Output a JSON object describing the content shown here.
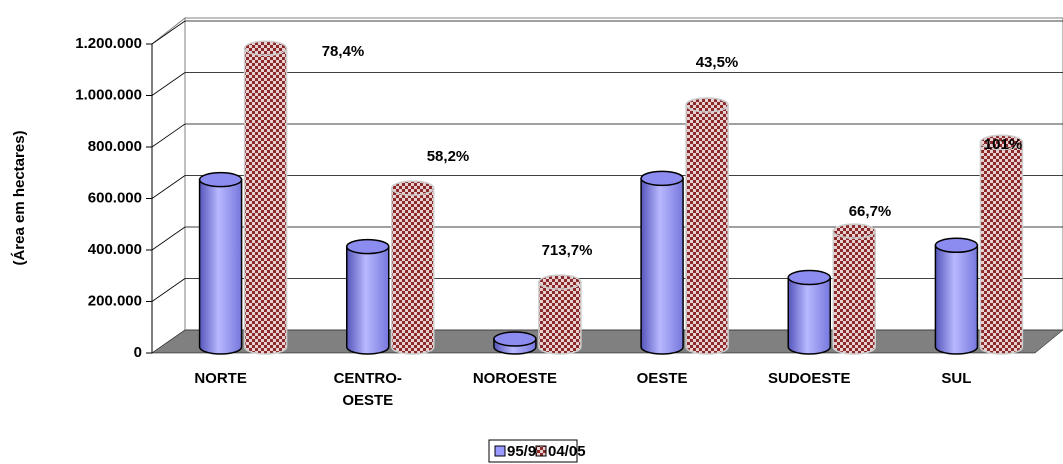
{
  "chart_data": {
    "type": "bar3d",
    "y_label": "(Área em hectares)",
    "categories": [
      "NORTE",
      "CENTRO-OESTE",
      "NOROESTE",
      "OESTE",
      "SUDOESTE",
      "SUL"
    ],
    "series": [
      {
        "name": "95/96",
        "color": "#9999ff",
        "values": [
          650000,
          390000,
          31000,
          655000,
          270000,
          395000
        ]
      },
      {
        "name": "04/05",
        "color": "#993333",
        "values": [
          1160000,
          617000,
          252000,
          940000,
          450000,
          795000
        ]
      }
    ],
    "annotations": [
      "78,4%",
      "58,2%",
      "713,7%",
      "43,5%",
      "66,7%",
      "101%"
    ],
    "ylim": [
      0,
      1200000
    ],
    "yticks": [
      0,
      {
        "value": 200000,
        "label": "200.000"
      },
      {
        "value": 400000,
        "label": "400.000"
      },
      {
        "value": 600000,
        "label": "600.000"
      },
      {
        "value": 800000,
        "label": "800.000"
      },
      {
        "value": 1000000,
        "label": "1.000.000"
      },
      {
        "value": 1200000,
        "label": "1.200.000"
      }
    ],
    "grid": true,
    "legend": "bottom"
  }
}
